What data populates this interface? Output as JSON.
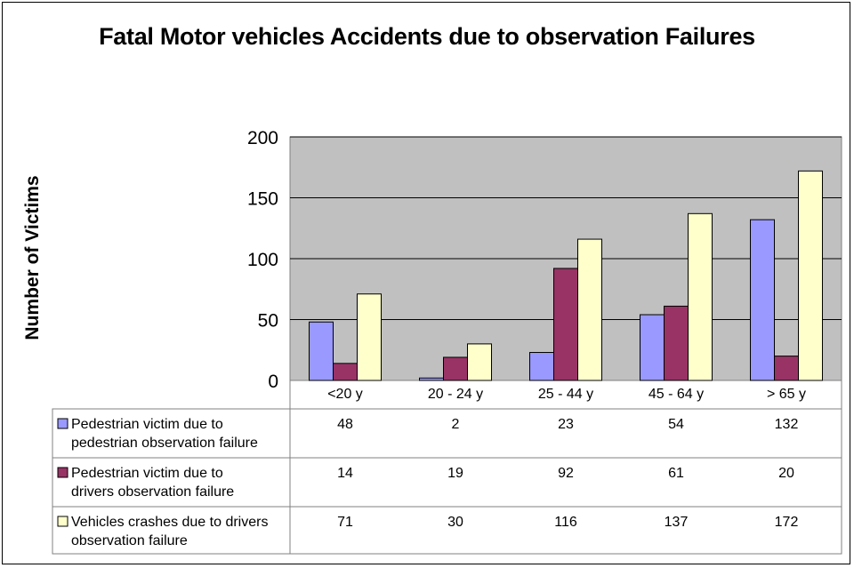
{
  "chart_data": {
    "type": "bar",
    "title": "Fatal Motor vehicles Accidents due to observation Failures",
    "ylabel": "Number of Victims",
    "xlabel": "",
    "ylim": [
      0,
      200
    ],
    "yticks": [
      "0",
      "50",
      "100",
      "150",
      "200"
    ],
    "categories": [
      "<20 y",
      "20 - 24 y",
      "25 - 44 y",
      "45 - 64 y",
      "> 65 y"
    ],
    "series": [
      {
        "name": "Pedestrian victim due to pedestrian observation failure",
        "values": [
          48,
          2,
          23,
          54,
          132
        ],
        "color": "#9999ff",
        "table_values": [
          "48",
          "2",
          "23",
          "54",
          "132"
        ]
      },
      {
        "name": "Pedestrian victim due to drivers observation failure",
        "values": [
          14,
          19,
          92,
          61,
          20
        ],
        "color": "#993366",
        "table_values": [
          "14",
          "19",
          "92",
          "61",
          "20"
        ]
      },
      {
        "name": "Vehicles crashes due to drivers observation failure",
        "values": [
          71,
          30,
          116,
          137,
          172
        ],
        "color": "#ffffcc",
        "table_values": [
          "71",
          "30",
          "116",
          "137",
          "172"
        ]
      }
    ],
    "plot_background": "#c0c0c0",
    "grid": true,
    "legend": "data-table"
  }
}
